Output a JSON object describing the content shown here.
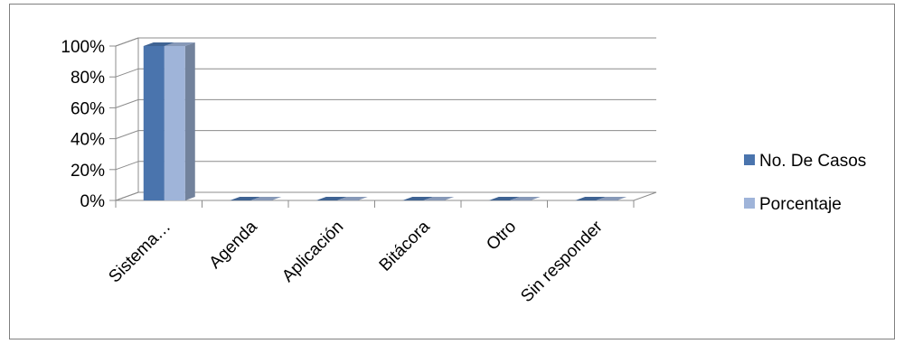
{
  "chart_data": {
    "type": "bar",
    "categories": [
      "Sistema…",
      "Agenda",
      "Aplicación",
      "Bitácora",
      "Otro",
      "Sin responder"
    ],
    "series": [
      {
        "name": "No. De Casos",
        "values": [
          100,
          0,
          0,
          0,
          0,
          0
        ],
        "color": "#4a74ad"
      },
      {
        "name": "Porcentaje",
        "values": [
          100,
          0,
          0,
          0,
          0,
          0
        ],
        "color": "#9fb4d9"
      }
    ],
    "y_ticks": [
      "0%",
      "20%",
      "40%",
      "60%",
      "80%",
      "100%"
    ],
    "ylim": [
      0,
      100
    ],
    "grid": true,
    "three_d": true,
    "legend_position": "right"
  }
}
